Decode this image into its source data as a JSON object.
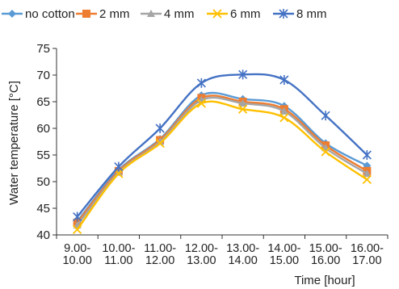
{
  "chart_data": {
    "type": "line",
    "title": "",
    "xlabel": "Time [hour]",
    "ylabel": "Water temperature [°C]",
    "ylim": [
      40,
      75
    ],
    "yticks": [
      40,
      45,
      50,
      55,
      60,
      65,
      70,
      75
    ],
    "grid": false,
    "legend_position": "top",
    "categories": [
      [
        "9.00-",
        "10.00"
      ],
      [
        "10.00-",
        "11.00"
      ],
      [
        "11.00-",
        "12.00"
      ],
      [
        "12.00-",
        "13.00"
      ],
      [
        "13.00-",
        "14.00"
      ],
      [
        "14.00-",
        "15.00"
      ],
      [
        "15.00-",
        "16.00"
      ],
      [
        "16.00-",
        "17.00"
      ]
    ],
    "series": [
      {
        "name": "no cotton",
        "color": "#5b9bd5",
        "marker": "diamond",
        "values": [
          42.5,
          52.2,
          58.0,
          66.2,
          65.5,
          64.2,
          57.2,
          53.0
        ]
      },
      {
        "name": "2 mm",
        "color": "#ed7d31",
        "marker": "square",
        "values": [
          42.3,
          52.0,
          57.8,
          65.7,
          65.0,
          63.6,
          56.8,
          52.0
        ]
      },
      {
        "name": "4 mm",
        "color": "#a5a5a5",
        "marker": "triangle",
        "values": [
          41.8,
          51.7,
          57.5,
          65.3,
          64.7,
          63.2,
          56.3,
          51.5
        ]
      },
      {
        "name": "6 mm",
        "color": "#ffc000",
        "marker": "x",
        "values": [
          41.0,
          51.5,
          57.2,
          64.7,
          63.6,
          62.0,
          55.6,
          50.4
        ]
      },
      {
        "name": "8 mm",
        "color": "#4472c4",
        "marker": "star",
        "values": [
          43.4,
          52.8,
          60.0,
          68.5,
          70.1,
          69.1,
          62.4,
          55.0
        ]
      }
    ]
  }
}
